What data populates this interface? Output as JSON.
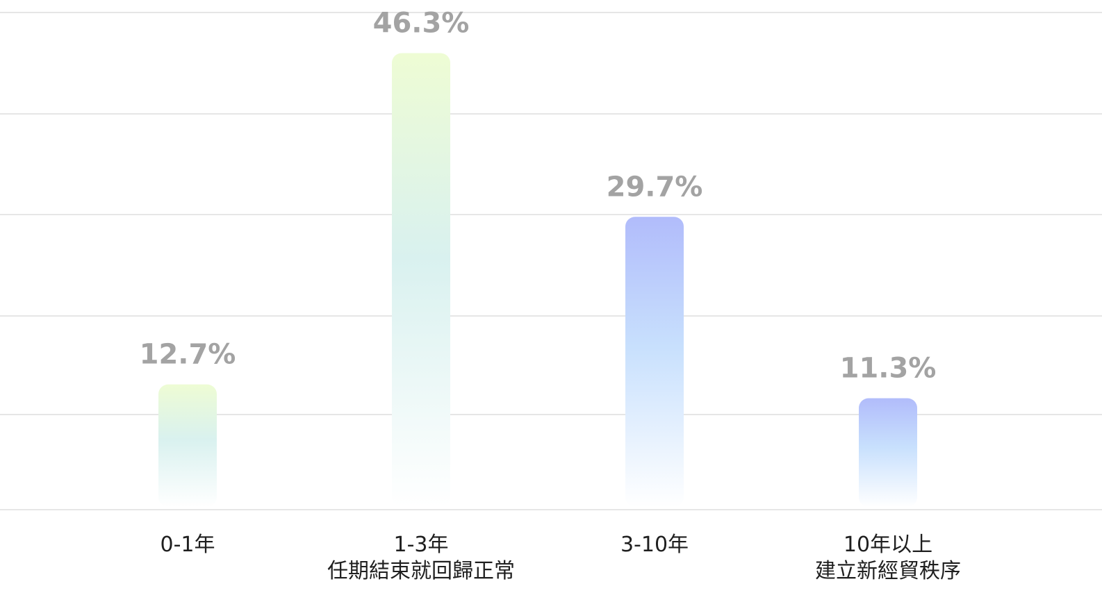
{
  "chart_data": {
    "type": "bar",
    "title": "",
    "xlabel": "",
    "ylabel": "",
    "ylim": [
      0,
      50
    ],
    "grid": true,
    "categories": [
      {
        "line1": "0-1年",
        "line2": ""
      },
      {
        "line1": "1-3年",
        "line2": "任期結束就回歸正常"
      },
      {
        "line1": "3-10年",
        "line2": ""
      },
      {
        "line1": "10年以上",
        "line2": "建立新經貿秩序"
      }
    ],
    "values": [
      12.7,
      46.3,
      29.7,
      11.3
    ],
    "value_labels": [
      "12.7%",
      "46.3%",
      "29.7%",
      "11.3%"
    ],
    "colors": {
      "green_gradient_top": "#eefcd4",
      "green_gradient_mid": "#d9f1ef",
      "green_gradient_bottom": "#ffffff",
      "blue_gradient_top": "#b1bcfb",
      "blue_gradient_mid": "#c8e0fd",
      "blue_gradient_bottom": "#ffffff",
      "value_label": "#a3a3a3",
      "gridline": "#e6e6e6",
      "category_label": "#1f1f1f"
    },
    "bar_styles": [
      "green",
      "green",
      "blue",
      "blue"
    ]
  }
}
